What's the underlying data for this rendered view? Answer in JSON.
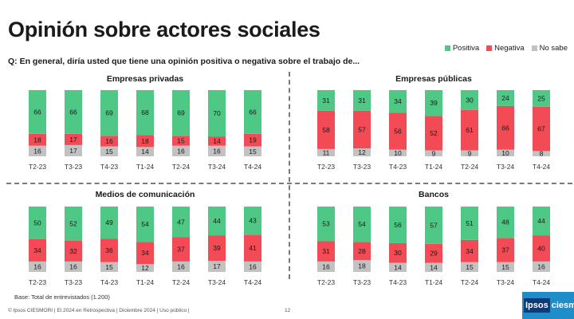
{
  "title": "Opinión sobre actores sociales",
  "question": "Q: En general, diría usted que tiene una opinión positiva o negativa sobre el trabajo de...",
  "legend": [
    {
      "label": "Positiva",
      "color": "#4fc886"
    },
    {
      "label": "Negativa",
      "color": "#f24b55"
    },
    {
      "label": "No sabe",
      "color": "#c2c2c2"
    }
  ],
  "base_note": "Base: Total de entrevistados (1.200)",
  "footer": "© Ipsos CIESMORI | El 2024 en Retrospectiva | Diciembre 2024 | Uso público |",
  "page_number": "12",
  "logo": {
    "box": "Ipsos",
    "word": "ciesmori"
  },
  "chart_data": [
    {
      "type": "bar",
      "stacked": true,
      "title": "Empresas privadas",
      "categories": [
        "T2-23",
        "T3-23",
        "T4-23",
        "T1-24",
        "T2-24",
        "T3-24",
        "T4-24"
      ],
      "series": [
        {
          "name": "No sabe",
          "color": "#c2c2c2",
          "values": [
            16,
            17,
            15,
            14,
            16,
            16,
            15
          ]
        },
        {
          "name": "Negativa",
          "color": "#f24b55",
          "values": [
            18,
            17,
            16,
            18,
            15,
            14,
            19
          ]
        },
        {
          "name": "Positiva",
          "color": "#4fc886",
          "values": [
            66,
            66,
            69,
            68,
            69,
            70,
            66
          ]
        }
      ]
    },
    {
      "type": "bar",
      "stacked": true,
      "title": "Empresas públicas",
      "categories": [
        "T2-23",
        "T3-23",
        "T4-23",
        "T1-24",
        "T2-24",
        "T3-24",
        "T4-24"
      ],
      "series": [
        {
          "name": "No sabe",
          "color": "#c2c2c2",
          "values": [
            11,
            12,
            10,
            9,
            9,
            10,
            8
          ]
        },
        {
          "name": "Negativa",
          "color": "#f24b55",
          "values": [
            58,
            57,
            56,
            52,
            61,
            66,
            67
          ]
        },
        {
          "name": "Positiva",
          "color": "#4fc886",
          "values": [
            31,
            31,
            34,
            39,
            30,
            24,
            25
          ]
        }
      ]
    },
    {
      "type": "bar",
      "stacked": true,
      "title": "Medios de comunicación",
      "categories": [
        "T2-23",
        "T3-23",
        "T4-23",
        "T1-24",
        "T2-24",
        "T3-24",
        "T4-24"
      ],
      "series": [
        {
          "name": "No sabe",
          "color": "#c2c2c2",
          "values": [
            16,
            16,
            15,
            12,
            16,
            17,
            16
          ]
        },
        {
          "name": "Negativa",
          "color": "#f24b55",
          "values": [
            34,
            32,
            36,
            34,
            37,
            39,
            41
          ]
        },
        {
          "name": "Positiva",
          "color": "#4fc886",
          "values": [
            50,
            52,
            49,
            54,
            47,
            44,
            43
          ]
        }
      ]
    },
    {
      "type": "bar",
      "stacked": true,
      "title": "Bancos",
      "categories": [
        "T2-23",
        "T3-23",
        "T4-23",
        "T1-24",
        "T2-24",
        "T3-24",
        "T4-24"
      ],
      "series": [
        {
          "name": "No sabe",
          "color": "#c2c2c2",
          "values": [
            16,
            18,
            14,
            14,
            15,
            15,
            16
          ]
        },
        {
          "name": "Negativa",
          "color": "#f24b55",
          "values": [
            31,
            28,
            30,
            29,
            34,
            37,
            40
          ]
        },
        {
          "name": "Positiva",
          "color": "#4fc886",
          "values": [
            53,
            54,
            56,
            57,
            51,
            48,
            44
          ]
        }
      ]
    }
  ]
}
